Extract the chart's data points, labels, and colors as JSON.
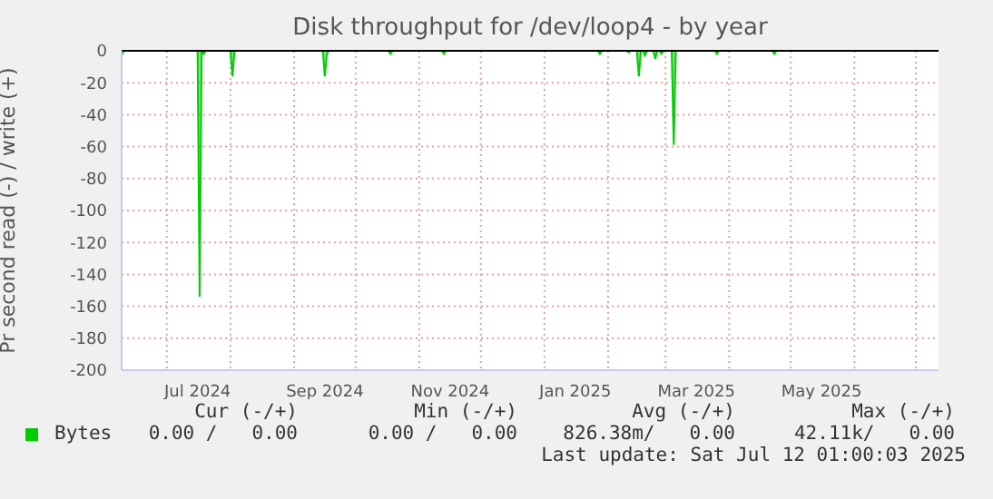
{
  "chart_data": {
    "type": "area",
    "title": "Disk throughput for /dev/loop4 - by year",
    "ylabel": "Pr second read (-) / write (+)",
    "x": [
      "2024-06-09",
      "2024-06-10",
      "2024-07-16",
      "2024-07-17",
      "2024-07-18",
      "2024-07-19",
      "2024-07-20",
      "2024-08-01",
      "2024-08-02",
      "2024-08-03",
      "2024-09-15",
      "2024-09-16",
      "2024-09-17",
      "2024-09-18",
      "2024-10-17",
      "2024-10-18",
      "2024-10-19",
      "2024-11-12",
      "2024-11-13",
      "2024-11-14",
      "2025-01-27",
      "2025-01-28",
      "2025-01-29",
      "2025-02-10",
      "2025-02-11",
      "2025-02-12",
      "2025-02-15",
      "2025-02-16",
      "2025-02-17",
      "2025-02-18",
      "2025-02-19",
      "2025-02-20",
      "2025-02-23",
      "2025-02-24",
      "2025-02-25",
      "2025-02-26",
      "2025-02-27",
      "2025-02-28",
      "2025-03-04",
      "2025-03-05",
      "2025-03-06",
      "2025-03-25",
      "2025-03-26",
      "2025-03-27",
      "2025-04-22",
      "2025-04-23",
      "2025-04-24",
      "2025-07-12"
    ],
    "series": [
      {
        "name": "Bytes",
        "color": "#00cc00",
        "values": [
          -3,
          0,
          0,
          -154,
          0,
          -2,
          0,
          0,
          -16,
          0,
          0,
          -16,
          -2,
          0,
          0,
          -2,
          0,
          0,
          -2,
          0,
          0,
          -2,
          0,
          0,
          -1,
          0,
          0,
          -16,
          0,
          0,
          -3,
          0,
          0,
          -5,
          0,
          0,
          -2,
          0,
          0,
          -59,
          0,
          0,
          -2,
          0,
          0,
          -2,
          0,
          0
        ]
      }
    ],
    "xlim": [
      "2024-06-09",
      "2025-07-12"
    ],
    "xticks": [
      {
        "value": "2024-07-01",
        "label": null
      },
      {
        "value": "2024-07-16",
        "label": "Jul 2024"
      },
      {
        "value": "2024-08-01",
        "label": null
      },
      {
        "value": "2024-09-01",
        "label": null
      },
      {
        "value": "2024-09-16",
        "label": "Sep 2024"
      },
      {
        "value": "2024-10-01",
        "label": null
      },
      {
        "value": "2024-11-01",
        "label": null
      },
      {
        "value": "2024-11-16",
        "label": "Nov 2024"
      },
      {
        "value": "2024-12-01",
        "label": null
      },
      {
        "value": "2025-01-01",
        "label": null
      },
      {
        "value": "2025-01-16",
        "label": "Jan 2025"
      },
      {
        "value": "2025-02-01",
        "label": null
      },
      {
        "value": "2025-03-01",
        "label": null
      },
      {
        "value": "2025-03-16",
        "label": "Mar 2025"
      },
      {
        "value": "2025-04-01",
        "label": null
      },
      {
        "value": "2025-05-01",
        "label": null
      },
      {
        "value": "2025-05-16",
        "label": "May 2025"
      },
      {
        "value": "2025-06-01",
        "label": null
      },
      {
        "value": "2025-07-01",
        "label": null
      }
    ],
    "ylim": [
      -200,
      0
    ],
    "yticks": [
      0,
      -20,
      -40,
      -60,
      -80,
      -100,
      -120,
      -140,
      -160,
      -180,
      -200
    ],
    "grid": true,
    "legend": "bottom",
    "ref_lines": [
      {
        "axis": "y",
        "value": 0,
        "color": "#000000"
      }
    ],
    "annotations": [
      "Cur (-/+)",
      "Min (-/+)",
      "Avg (-/+)",
      "Max (-/+)",
      "0.00 /   0.00",
      "0.00 /   0.00",
      "826.38m/   0.00",
      "42.11k/   0.00",
      "Last update: Sat Jul 12 01:00:03 2025"
    ]
  }
}
